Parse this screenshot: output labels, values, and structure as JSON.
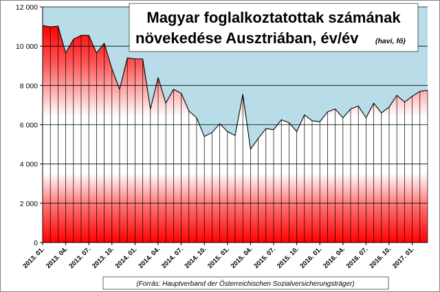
{
  "chart_data": {
    "type": "area",
    "title_line1": "Magyar foglalkoztatottak számának",
    "title_line2": "növekedése Ausztriában, év/év",
    "title_suffix": "(havi, fő)",
    "source": "(Forrás:  Hauptverband der Österreichischen  Sozialversicherungsträger)",
    "ylim": [
      0,
      12000
    ],
    "yticks": [
      0,
      2000,
      4000,
      6000,
      8000,
      10000,
      12000
    ],
    "ytick_labels": [
      "0",
      "2 000",
      "4 000",
      "6 000",
      "8 000",
      "10 000",
      "12 000"
    ],
    "xtick_labels": [
      "2013. 01.",
      "2013. 04.",
      "2013. 07.",
      "2013. 10.",
      "2014. 01.",
      "2014. 04.",
      "2014. 07.",
      "2014. 10.",
      "2015. 01.",
      "2015. 04.",
      "2015. 07.",
      "2015. 10.",
      "2016. 01.",
      "2016. 04.",
      "2016. 07.",
      "2016. 10.",
      "2017. 01."
    ],
    "xtick_step": 3,
    "grid": true,
    "colors": {
      "plot_background": "#b8dde8",
      "fill_top": "#ff0000",
      "fill_middle": "#ffffff",
      "outline": "#000000",
      "gridline": "#000000"
    },
    "months": [
      "2013. 01.",
      "2013. 02.",
      "2013. 03.",
      "2013. 04.",
      "2013. 05.",
      "2013. 06.",
      "2013. 07.",
      "2013. 08.",
      "2013. 09.",
      "2013. 10.",
      "2013. 11.",
      "2013. 12.",
      "2014. 01.",
      "2014. 02.",
      "2014. 03.",
      "2014. 04.",
      "2014. 05.",
      "2014. 06.",
      "2014. 07.",
      "2014. 08.",
      "2014. 09.",
      "2014. 10.",
      "2014. 11.",
      "2014. 12.",
      "2015. 01.",
      "2015. 02.",
      "2015. 03.",
      "2015. 04.",
      "2015. 05.",
      "2015. 06.",
      "2015. 07.",
      "2015. 08.",
      "2015. 09.",
      "2015. 10.",
      "2015. 11.",
      "2015. 12.",
      "2016. 01.",
      "2016. 02.",
      "2016. 03.",
      "2016. 04.",
      "2016. 05.",
      "2016. 06.",
      "2016. 07.",
      "2016. 08.",
      "2016. 09.",
      "2016. 10.",
      "2016. 11.",
      "2016. 12.",
      "2017. 01.",
      "2017. 02.",
      "2017. 03."
    ],
    "values": [
      11050,
      10980,
      11020,
      9650,
      10350,
      10550,
      10550,
      9650,
      10150,
      8850,
      7800,
      9400,
      9350,
      9350,
      6800,
      8400,
      7100,
      7800,
      7600,
      6700,
      6350,
      5400,
      5600,
      6050,
      5650,
      5450,
      7550,
      4750,
      5300,
      5800,
      5750,
      6250,
      6100,
      5650,
      6500,
      6200,
      6150,
      6650,
      6800,
      6350,
      6800,
      6950,
      6350,
      7100,
      6600,
      6900,
      7500,
      7150,
      7450,
      7700,
      7750
    ]
  }
}
